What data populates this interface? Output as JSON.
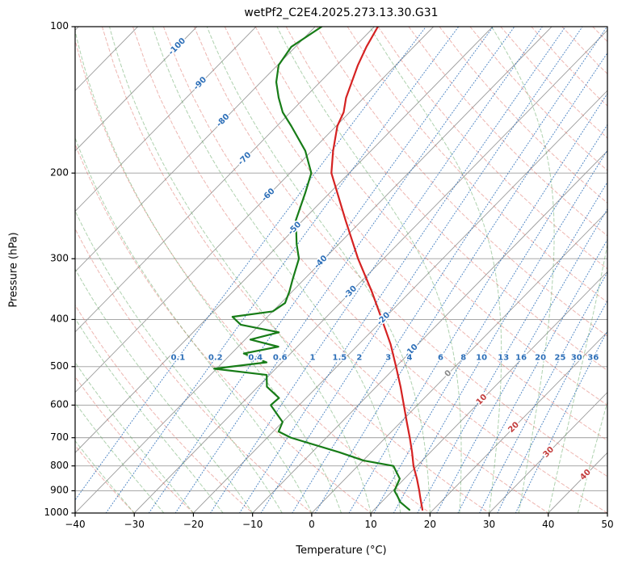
{
  "chart_data": {
    "type": "line",
    "variant": "skew-t-log-p-sounding",
    "title": "wetPf2_C2E4.2025.273.13.30.G31",
    "xlabel": "Temperature (°C)",
    "ylabel": "Pressure (hPa)",
    "xlim": [
      -40,
      50
    ],
    "plim": [
      1000,
      100
    ],
    "p_scale": "log",
    "skew_factor": 35,
    "x_ticks": [
      -40,
      -30,
      -20,
      -10,
      0,
      10,
      20,
      30,
      40,
      50
    ],
    "x_tick_labels": [
      "−40",
      "−30",
      "−20",
      "−10",
      "0",
      "10",
      "20",
      "30",
      "40",
      "50"
    ],
    "p_ticks": [
      100,
      200,
      300,
      400,
      500,
      600,
      700,
      800,
      900,
      1000
    ],
    "p_tick_labels": [
      "100",
      "200",
      "300",
      "400",
      "500",
      "600",
      "700",
      "800",
      "900",
      "1000"
    ],
    "series": [
      {
        "name": "temperature",
        "color": "#d52222",
        "points_p_t": [
          [
            985,
            18.2
          ],
          [
            950,
            16.7
          ],
          [
            925,
            15.6
          ],
          [
            900,
            14.5
          ],
          [
            850,
            12.1
          ],
          [
            800,
            9.4
          ],
          [
            750,
            6.9
          ],
          [
            700,
            4.1
          ],
          [
            650,
            1.0
          ],
          [
            600,
            -2.3
          ],
          [
            550,
            -5.9
          ],
          [
            500,
            -10.0
          ],
          [
            450,
            -14.6
          ],
          [
            400,
            -20.2
          ],
          [
            350,
            -26.6
          ],
          [
            300,
            -34.3
          ],
          [
            250,
            -42.8
          ],
          [
            200,
            -53.0
          ],
          [
            180,
            -56.4
          ],
          [
            160,
            -59.8
          ],
          [
            150,
            -61.0
          ],
          [
            140,
            -63.0
          ],
          [
            120,
            -66.4
          ],
          [
            110,
            -68.0
          ],
          [
            100,
            -69.4
          ]
        ]
      },
      {
        "name": "dewpoint",
        "color": "#177c17",
        "points_p_t": [
          [
            985,
            16.0
          ],
          [
            950,
            13.2
          ],
          [
            925,
            11.8
          ],
          [
            900,
            10.3
          ],
          [
            850,
            9.2
          ],
          [
            800,
            6.0
          ],
          [
            780,
            0.1
          ],
          [
            750,
            -5.4
          ],
          [
            700,
            -16.0
          ],
          [
            680,
            -19.1
          ],
          [
            650,
            -20.0
          ],
          [
            600,
            -24.8
          ],
          [
            580,
            -24.6
          ],
          [
            550,
            -28.5
          ],
          [
            520,
            -30.5
          ],
          [
            505,
            -40.4
          ],
          [
            490,
            -32.6
          ],
          [
            470,
            -37.9
          ],
          [
            455,
            -33.2
          ],
          [
            440,
            -39.1
          ],
          [
            425,
            -35.5
          ],
          [
            410,
            -43.2
          ],
          [
            395,
            -45.9
          ],
          [
            385,
            -40.0
          ],
          [
            370,
            -39.3
          ],
          [
            350,
            -40.5
          ],
          [
            330,
            -42.0
          ],
          [
            300,
            -44.3
          ],
          [
            280,
            -47.1
          ],
          [
            250,
            -51.2
          ],
          [
            220,
            -54.1
          ],
          [
            200,
            -56.4
          ],
          [
            180,
            -61.1
          ],
          [
            160,
            -67.6
          ],
          [
            150,
            -71.3
          ],
          [
            140,
            -74.4
          ],
          [
            130,
            -77.4
          ],
          [
            120,
            -79.8
          ],
          [
            110,
            -80.7
          ],
          [
            100,
            -78.9
          ]
        ]
      }
    ],
    "background": {
      "isotherms_c": {
        "min": -130,
        "max": 50,
        "step": 10
      },
      "dry_adiabats_theta_c": {
        "min": -40,
        "max": 200,
        "step": 10
      },
      "moist_adiabats_t0_c": {
        "min": -30,
        "max": 45,
        "step": 5
      },
      "mixing_ratios_g_kg": [
        0.1,
        0.2,
        0.4,
        0.6,
        1,
        1.5,
        2,
        3,
        4,
        6,
        8,
        10,
        13,
        16,
        20,
        25,
        30,
        36
      ],
      "mixing_label_pressure_hpa": 480,
      "isotherm_labels_t_p": [
        [
          -100,
          110
        ],
        [
          -90,
          131
        ],
        [
          -80,
          156
        ],
        [
          -70,
          187
        ],
        [
          -60,
          222
        ],
        [
          -50,
          260
        ],
        [
          -40,
          305
        ],
        [
          -30,
          352
        ],
        [
          -20,
          399
        ],
        [
          -10,
          464
        ],
        [
          0,
          517
        ],
        [
          10,
          585
        ],
        [
          20,
          667
        ],
        [
          30,
          750
        ],
        [
          40,
          835
        ]
      ]
    },
    "colors": {
      "isotherm": "#9c9c9c",
      "grid": "#9c9c9c",
      "dry_adiabat": "rgba(222,110,100,0.5)",
      "moist_adiabat": "rgba(95,165,95,0.5)",
      "mixing_line": "rgba(45,110,185,0.85)",
      "temperature": "#d52222",
      "dewpoint": "#177c17",
      "label_negative": "#2d6fb8",
      "label_zero": "#8a8a8a",
      "label_positive": "#c23b3b",
      "mixing_label": "#2d6fb8",
      "axis": "#000000"
    }
  }
}
